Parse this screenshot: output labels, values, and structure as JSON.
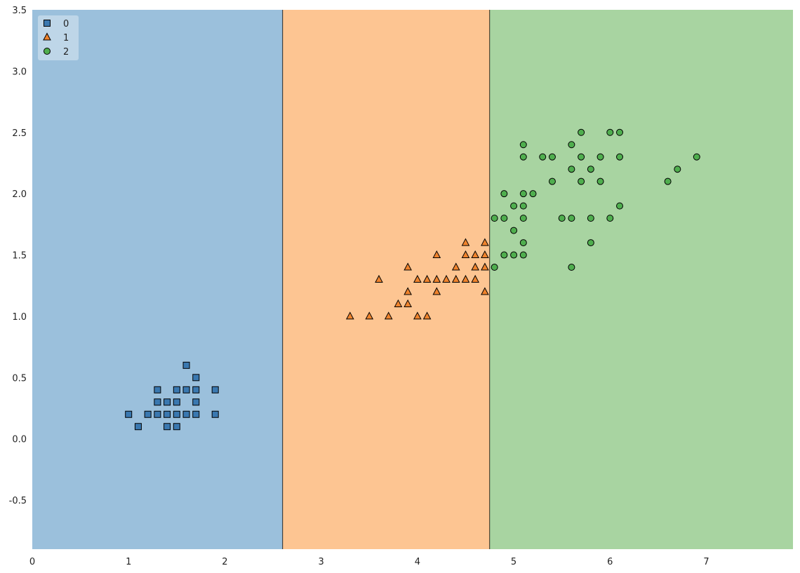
{
  "chart_data": {
    "type": "scatter",
    "title": "",
    "xlabel": "",
    "ylabel": "",
    "xlim": [
      0,
      7.9
    ],
    "ylim": [
      -0.9,
      3.5
    ],
    "x_ticks": [
      "0",
      "1",
      "2",
      "3",
      "4",
      "5",
      "6",
      "7"
    ],
    "y_ticks": [
      "-0.5",
      "0.0",
      "0.5",
      "1.0",
      "1.5",
      "2.0",
      "2.5",
      "3.0",
      "3.5"
    ],
    "grid": false,
    "legend": "top-left",
    "decision_regions": [
      {
        "class": "0",
        "x_from": 0,
        "x_to": 2.6,
        "color": "#9bc0dc"
      },
      {
        "class": "1",
        "x_from": 2.6,
        "x_to": 4.75,
        "color": "#fdc592"
      },
      {
        "class": "2",
        "x_from": 4.75,
        "x_to": 7.9,
        "color": "#a8d4a1"
      }
    ],
    "series": [
      {
        "name": "0",
        "marker": "square",
        "color": "#3a78b0",
        "points": [
          [
            1.0,
            0.2
          ],
          [
            1.1,
            0.1
          ],
          [
            1.2,
            0.2
          ],
          [
            1.3,
            0.2
          ],
          [
            1.3,
            0.3
          ],
          [
            1.3,
            0.4
          ],
          [
            1.4,
            0.1
          ],
          [
            1.4,
            0.2
          ],
          [
            1.4,
            0.3
          ],
          [
            1.5,
            0.1
          ],
          [
            1.5,
            0.2
          ],
          [
            1.5,
            0.3
          ],
          [
            1.5,
            0.4
          ],
          [
            1.6,
            0.2
          ],
          [
            1.6,
            0.4
          ],
          [
            1.6,
            0.6
          ],
          [
            1.7,
            0.2
          ],
          [
            1.7,
            0.3
          ],
          [
            1.7,
            0.4
          ],
          [
            1.7,
            0.5
          ],
          [
            1.9,
            0.2
          ],
          [
            1.9,
            0.4
          ]
        ]
      },
      {
        "name": "1",
        "marker": "triangle",
        "color": "#f0832c",
        "points": [
          [
            3.3,
            1.0
          ],
          [
            3.5,
            1.0
          ],
          [
            3.6,
            1.3
          ],
          [
            3.7,
            1.0
          ],
          [
            3.8,
            1.1
          ],
          [
            3.9,
            1.1
          ],
          [
            3.9,
            1.2
          ],
          [
            3.9,
            1.4
          ],
          [
            4.0,
            1.0
          ],
          [
            4.0,
            1.3
          ],
          [
            4.1,
            1.0
          ],
          [
            4.1,
            1.3
          ],
          [
            4.2,
            1.2
          ],
          [
            4.2,
            1.3
          ],
          [
            4.2,
            1.5
          ],
          [
            4.3,
            1.3
          ],
          [
            4.4,
            1.3
          ],
          [
            4.4,
            1.4
          ],
          [
            4.5,
            1.3
          ],
          [
            4.5,
            1.5
          ],
          [
            4.5,
            1.6
          ],
          [
            4.6,
            1.3
          ],
          [
            4.6,
            1.4
          ],
          [
            4.6,
            1.5
          ],
          [
            4.7,
            1.2
          ],
          [
            4.7,
            1.4
          ],
          [
            4.7,
            1.5
          ],
          [
            4.7,
            1.6
          ]
        ]
      },
      {
        "name": "2",
        "marker": "circle",
        "color": "#4fae4e",
        "points": [
          [
            4.8,
            1.4
          ],
          [
            4.8,
            1.8
          ],
          [
            4.9,
            1.5
          ],
          [
            4.9,
            1.8
          ],
          [
            4.9,
            2.0
          ],
          [
            5.0,
            1.5
          ],
          [
            5.0,
            1.7
          ],
          [
            5.0,
            1.9
          ],
          [
            5.1,
            1.5
          ],
          [
            5.1,
            1.6
          ],
          [
            5.1,
            1.8
          ],
          [
            5.1,
            1.9
          ],
          [
            5.1,
            2.0
          ],
          [
            5.1,
            2.3
          ],
          [
            5.1,
            2.4
          ],
          [
            5.2,
            2.0
          ],
          [
            5.3,
            2.3
          ],
          [
            5.4,
            2.1
          ],
          [
            5.4,
            2.3
          ],
          [
            5.5,
            1.8
          ],
          [
            5.6,
            1.4
          ],
          [
            5.6,
            1.8
          ],
          [
            5.6,
            2.2
          ],
          [
            5.6,
            2.4
          ],
          [
            5.7,
            2.1
          ],
          [
            5.7,
            2.3
          ],
          [
            5.7,
            2.5
          ],
          [
            5.8,
            1.6
          ],
          [
            5.8,
            1.8
          ],
          [
            5.8,
            2.2
          ],
          [
            5.9,
            2.1
          ],
          [
            5.9,
            2.3
          ],
          [
            6.0,
            1.8
          ],
          [
            6.0,
            2.5
          ],
          [
            6.1,
            1.9
          ],
          [
            6.1,
            2.3
          ],
          [
            6.1,
            2.5
          ],
          [
            6.6,
            2.1
          ],
          [
            6.7,
            2.2
          ],
          [
            6.9,
            2.3
          ]
        ]
      }
    ]
  }
}
